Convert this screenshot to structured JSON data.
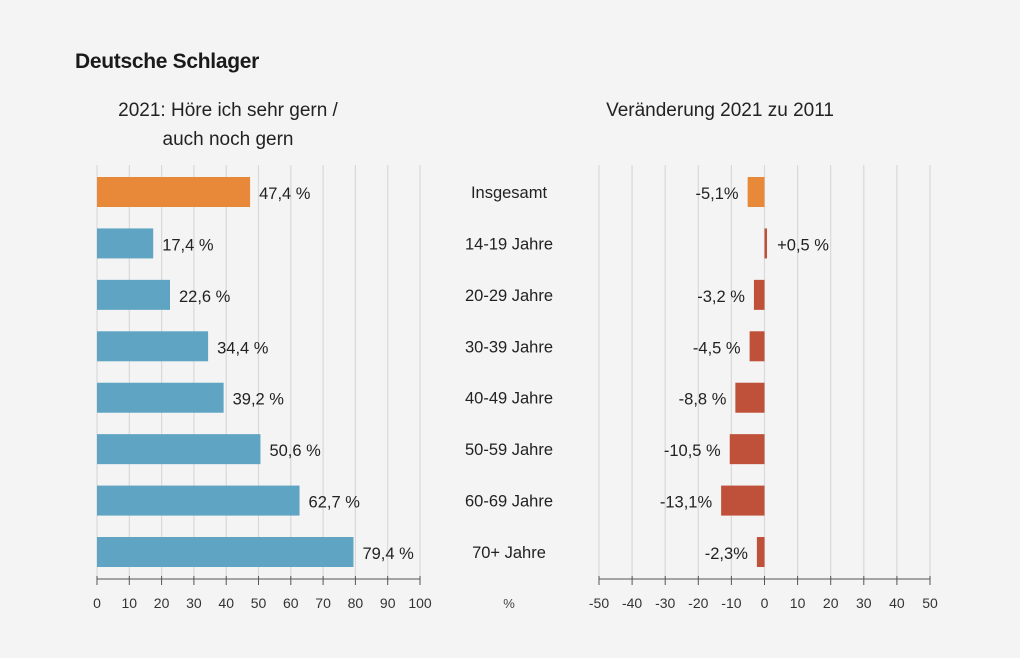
{
  "chart_data": [
    {
      "type": "bar",
      "orientation": "horizontal",
      "title": "Deutsche Schlager",
      "subtitle": "2021: Höre ich sehr gern / auch noch gern",
      "subtitle_lines": [
        "2021: Höre ich sehr gern /",
        "auch noch gern"
      ],
      "categories": [
        "Insgesamt",
        "14-19 Jahre",
        "20-29 Jahre",
        "30-39 Jahre",
        "40-49 Jahre",
        "50-59 Jahre",
        "60-69 Jahre",
        "70+ Jahre"
      ],
      "values": [
        47.4,
        17.4,
        22.6,
        34.4,
        39.2,
        50.6,
        62.7,
        79.4
      ],
      "data_labels": [
        "47,4 %",
        "17,4 %",
        "22,6 %",
        "34,4 %",
        "39,2 %",
        "50,6 %",
        "62,7 %",
        "79,4 %"
      ],
      "xlim": [
        0,
        100
      ],
      "ticks": [
        "0",
        "10",
        "20",
        "30",
        "40",
        "50",
        "60",
        "70",
        "80",
        "90",
        "100"
      ],
      "xlabel": "%",
      "grid": true,
      "colors": {
        "highlight": "#e8893a",
        "bars": "#5fa4c2"
      }
    },
    {
      "type": "bar",
      "orientation": "horizontal",
      "subtitle": "Veränderung 2021 zu 2011",
      "categories": [
        "Insgesamt",
        "14-19 Jahre",
        "20-29 Jahre",
        "30-39 Jahre",
        "40-49 Jahre",
        "50-59 Jahre",
        "60-69 Jahre",
        "70+ Jahre"
      ],
      "values": [
        -5.1,
        0.5,
        -3.2,
        -4.5,
        -8.8,
        -10.5,
        -13.1,
        -2.3
      ],
      "data_labels": [
        "-5,1%",
        "+0,5 %",
        "-3,2 %",
        "-4,5 %",
        "-8,8 %",
        "-10,5 %",
        "-13,1%",
        "-2,3%"
      ],
      "xlim": [
        -50,
        50
      ],
      "ticks": [
        "-50",
        "-40",
        "-30",
        "-20",
        "-10",
        "0",
        "10",
        "20",
        "30",
        "40",
        "50"
      ],
      "grid": true,
      "colors": {
        "highlight": "#e8893a",
        "bars": "#bf5039"
      }
    }
  ]
}
